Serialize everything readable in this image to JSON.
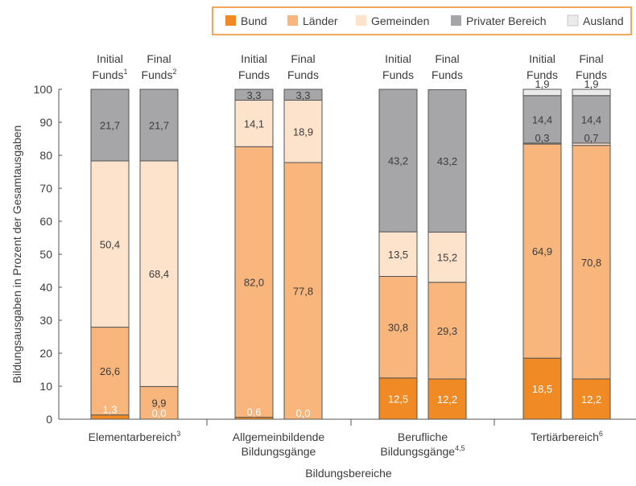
{
  "chart_data": {
    "type": "bar",
    "stacked": true,
    "ylabel": "Bildungsausgaben in Prozent der Gesamtausgaben",
    "xlabel": "Bildungsbereiche",
    "ylim": [
      0,
      100
    ],
    "yticks": [
      "0",
      "10",
      "20",
      "30",
      "40",
      "50",
      "60",
      "70",
      "80",
      "90",
      "100"
    ],
    "legend": {
      "placement": "top-right",
      "items": [
        {
          "label": "Bund",
          "color": "#f08a24"
        },
        {
          "label": "Länder",
          "color": "#f8b57c"
        },
        {
          "label": "Gemeinden",
          "color": "#fde2cc"
        },
        {
          "label": "Privater Bereich",
          "color": "#a6a6a8"
        },
        {
          "label": "Ausland",
          "color": "#ebebeb"
        }
      ]
    },
    "series_names": [
      "Bund",
      "Länder",
      "Gemeinden",
      "Privater Bereich",
      "Ausland"
    ],
    "groups": [
      {
        "label": "Elementarbereich",
        "label_sup": "3",
        "label_lines": [
          {
            "text": "Elementarbereich",
            "sup": "3"
          }
        ],
        "bars": [
          {
            "head1": "Initial",
            "head2": "Funds",
            "head2_sup": "1",
            "values": [
              1.3,
              26.6,
              50.4,
              21.7,
              0
            ],
            "labels": [
              "1,3",
              "26,6",
              "50,4",
              "21,7",
              ""
            ]
          },
          {
            "head1": "Final",
            "head2": "Funds",
            "head2_sup": "2",
            "values": [
              0.0,
              9.9,
              68.4,
              21.7,
              0
            ],
            "labels": [
              "0,0",
              "9,9",
              "68,4",
              "21,7",
              ""
            ]
          }
        ]
      },
      {
        "label": "Allgemeinbildende Bildungsgänge",
        "label_lines": [
          {
            "text": "Allgemeinbildende",
            "sup": ""
          },
          {
            "text": "Bildungsgänge",
            "sup": ""
          }
        ],
        "bars": [
          {
            "head1": "Initial",
            "head2": "Funds",
            "head2_sup": "",
            "values": [
              0.6,
              82.0,
              14.1,
              3.3,
              0
            ],
            "labels": [
              "0,6",
              "82,0",
              "14,1",
              "3,3",
              ""
            ]
          },
          {
            "head1": "Final",
            "head2": "Funds",
            "head2_sup": "",
            "values": [
              0.0,
              77.8,
              18.9,
              3.3,
              0
            ],
            "labels": [
              "0,0",
              "77,8",
              "18,9",
              "3,3",
              ""
            ]
          }
        ]
      },
      {
        "label": "Berufliche Bildungsgänge",
        "label_lines": [
          {
            "text": "Berufliche",
            "sup": ""
          },
          {
            "text": "Bildungsgänge",
            "sup": "4,5"
          }
        ],
        "bars": [
          {
            "head1": "Initial",
            "head2": "Funds",
            "head2_sup": "",
            "values": [
              12.5,
              30.8,
              13.5,
              43.2,
              0
            ],
            "labels": [
              "12,5",
              "30,8",
              "13,5",
              "43,2",
              ""
            ]
          },
          {
            "head1": "Final",
            "head2": "Funds",
            "head2_sup": "",
            "values": [
              12.2,
              29.3,
              15.2,
              43.2,
              0
            ],
            "labels": [
              "12,2",
              "29,3",
              "15,2",
              "43,2",
              ""
            ]
          }
        ]
      },
      {
        "label": "Tertiärbereich",
        "label_lines": [
          {
            "text": "Tertiärbereich",
            "sup": "6"
          }
        ],
        "bars": [
          {
            "head1": "Initial",
            "head2": "Funds",
            "head2_sup": "",
            "values": [
              18.5,
              64.9,
              0.3,
              14.4,
              1.9
            ],
            "labels": [
              "18,5",
              "64,9",
              "0,3",
              "14,4",
              "1,9"
            ]
          },
          {
            "head1": "Final",
            "head2": "Funds",
            "head2_sup": "",
            "values": [
              12.2,
              70.8,
              0.7,
              14.4,
              1.9
            ],
            "labels": [
              "12,2",
              "70,8",
              "0,7",
              "14,4",
              "1,9"
            ]
          }
        ]
      }
    ]
  }
}
